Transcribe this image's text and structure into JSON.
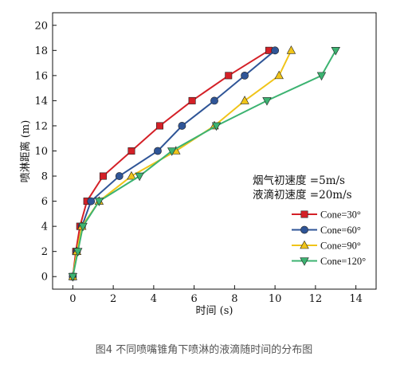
{
  "chart_data": {
    "type": "line",
    "xlabel": "时间 (s)",
    "ylabel": "喷淋距离 (m)",
    "xlim": [
      -1,
      15
    ],
    "ylim": [
      -1,
      21
    ],
    "xticks": [
      0,
      2,
      4,
      6,
      8,
      10,
      12,
      14
    ],
    "yticks": [
      0,
      2,
      4,
      6,
      8,
      10,
      12,
      14,
      16,
      18,
      20
    ],
    "grid": false,
    "legend_position": "right",
    "annotations": [
      "烟气初速度 =5m/s",
      "液滴初速度 =20m/s"
    ],
    "series": [
      {
        "name": "Cone=30°",
        "color": "#d42027",
        "marker": "square",
        "points": [
          [
            0,
            0
          ],
          [
            0.15,
            2
          ],
          [
            0.35,
            4
          ],
          [
            0.7,
            6
          ],
          [
            1.5,
            8
          ],
          [
            2.9,
            10
          ],
          [
            4.3,
            12
          ],
          [
            5.9,
            14
          ],
          [
            7.7,
            16
          ],
          [
            9.7,
            18
          ]
        ]
      },
      {
        "name": "Cone=60°",
        "color": "#2f5597",
        "marker": "circle",
        "points": [
          [
            0,
            0
          ],
          [
            0.2,
            2
          ],
          [
            0.45,
            4
          ],
          [
            0.9,
            6
          ],
          [
            2.3,
            8
          ],
          [
            4.2,
            10
          ],
          [
            5.4,
            12
          ],
          [
            7.0,
            14
          ],
          [
            8.5,
            16
          ],
          [
            10.0,
            18
          ]
        ]
      },
      {
        "name": "Cone=90°",
        "color": "#f0c419",
        "marker": "triangle-up",
        "points": [
          [
            0,
            0
          ],
          [
            0.2,
            2
          ],
          [
            0.45,
            4
          ],
          [
            1.3,
            6
          ],
          [
            2.9,
            8
          ],
          [
            5.1,
            10
          ],
          [
            7.0,
            12
          ],
          [
            8.5,
            14
          ],
          [
            10.2,
            16
          ],
          [
            10.8,
            18
          ]
        ]
      },
      {
        "name": "Cone=120°",
        "color": "#3cb371",
        "marker": "triangle-down",
        "points": [
          [
            0,
            0
          ],
          [
            0.25,
            2
          ],
          [
            0.5,
            4
          ],
          [
            1.3,
            6
          ],
          [
            3.3,
            8
          ],
          [
            4.9,
            10
          ],
          [
            7.1,
            12
          ],
          [
            9.6,
            14
          ],
          [
            12.3,
            16
          ],
          [
            13.0,
            18
          ]
        ]
      }
    ]
  },
  "caption": "图4 不同喷嘴锥角下喷淋的液滴随时间的分布图"
}
